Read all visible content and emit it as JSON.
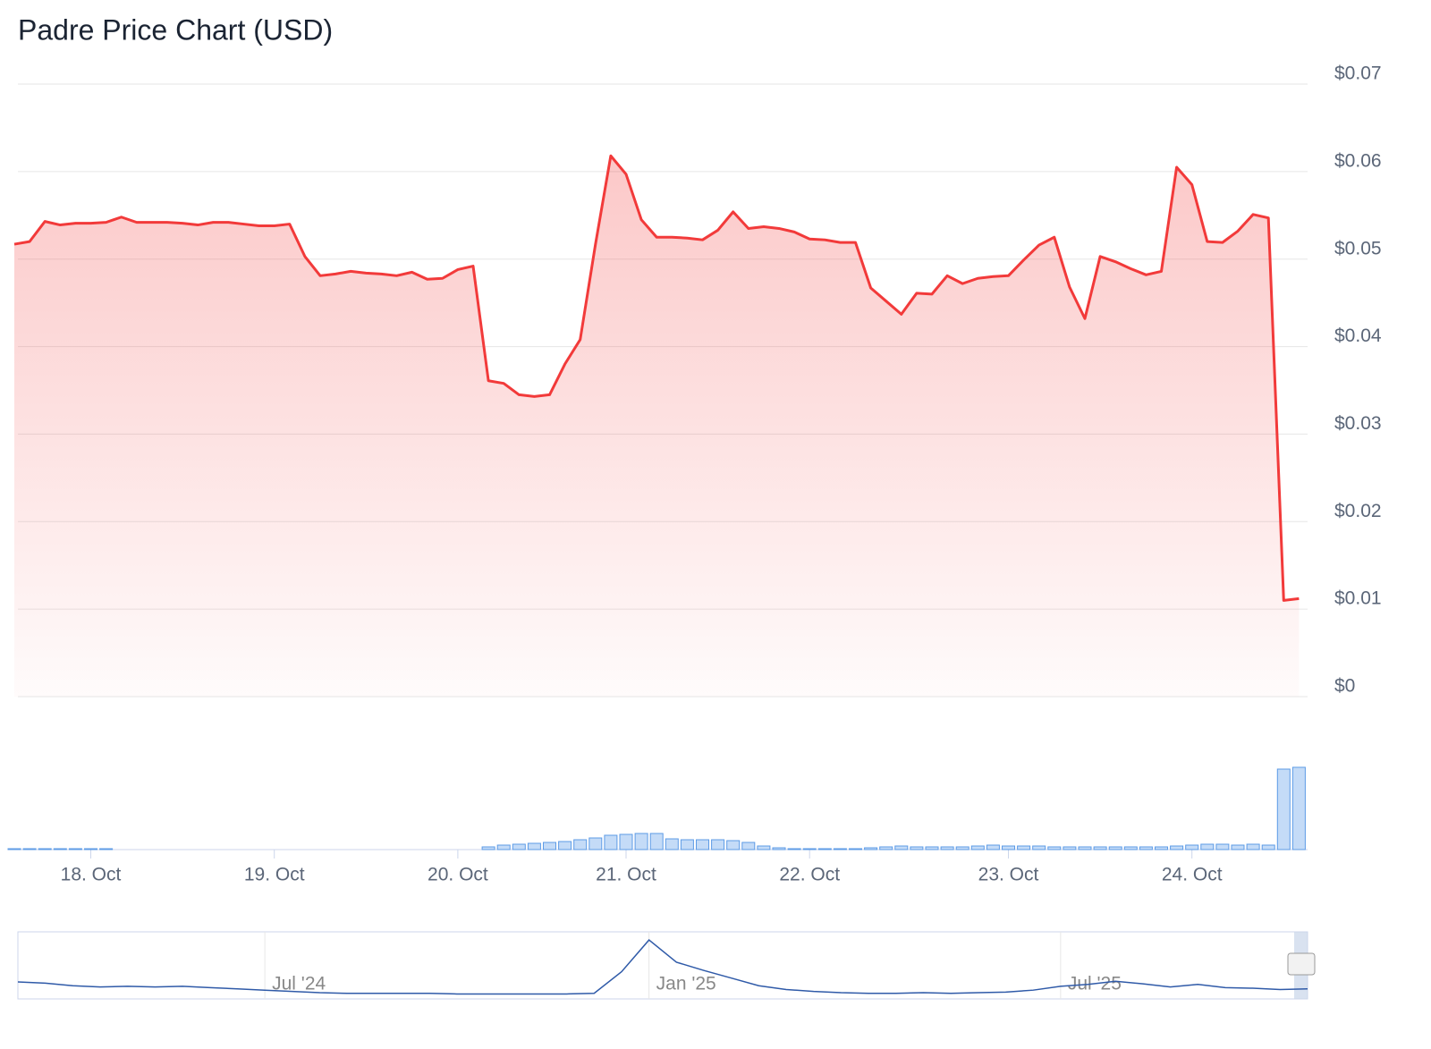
{
  "chart_data": [
    {
      "type": "area",
      "title": "Padre Price Chart (USD)",
      "color": "#f23a3a",
      "categories": [
        null,
        null,
        null,
        null,
        null,
        "18. Oct",
        null,
        null,
        null,
        null,
        null,
        null,
        null,
        null,
        null,
        null,
        null,
        "19. Oct",
        null,
        null,
        null,
        null,
        null,
        null,
        null,
        null,
        null,
        null,
        null,
        "20. Oct",
        null,
        null,
        null,
        null,
        null,
        null,
        null,
        null,
        null,
        null,
        "21. Oct",
        null,
        null,
        null,
        null,
        null,
        null,
        null,
        null,
        null,
        null,
        null,
        "22. Oct",
        null,
        null,
        null,
        null,
        null,
        null,
        null,
        null,
        null,
        null,
        null,
        null,
        "23. Oct",
        null,
        null,
        null,
        null,
        null,
        null,
        null,
        null,
        null,
        null,
        null,
        "24. Oct",
        null,
        null,
        null,
        null,
        null,
        null,
        null
      ],
      "values": [
        0.0517,
        0.052,
        0.0543,
        0.0539,
        0.0541,
        0.0541,
        0.0542,
        0.0548,
        0.0542,
        0.0542,
        0.0542,
        0.0541,
        0.0539,
        0.0542,
        0.0542,
        0.054,
        0.0538,
        0.0538,
        0.054,
        0.0503,
        0.0481,
        0.0483,
        0.0486,
        0.0484,
        0.0483,
        0.0481,
        0.0485,
        0.0477,
        0.0478,
        0.0488,
        0.0492,
        0.0361,
        0.0358,
        0.0345,
        0.0343,
        0.0345,
        0.038,
        0.0408,
        0.0517,
        0.0618,
        0.0597,
        0.0545,
        0.0525,
        0.0525,
        0.0524,
        0.0522,
        0.0533,
        0.0554,
        0.0535,
        0.0537,
        0.0535,
        0.0531,
        0.0523,
        0.0522,
        0.0519,
        0.0519,
        0.0467,
        0.0452,
        0.0437,
        0.0461,
        0.046,
        0.0481,
        0.0472,
        0.0478,
        0.048,
        0.0481,
        0.0499,
        0.0516,
        0.0525,
        0.0468,
        0.0432,
        0.0503,
        0.0497,
        0.0489,
        0.0482,
        0.0486,
        0.0605,
        0.0585,
        0.052,
        0.0519,
        0.0532,
        0.0551,
        0.0547,
        0.011,
        0.0112
      ],
      "ylim": [
        0,
        0.07
      ],
      "yticks": [
        {
          "value": 0,
          "label": "$0"
        },
        {
          "value": 0.01,
          "label": "$0.01"
        },
        {
          "value": 0.02,
          "label": "$0.02"
        },
        {
          "value": 0.03,
          "label": "$0.03"
        },
        {
          "value": 0.04,
          "label": "$0.04"
        },
        {
          "value": 0.05,
          "label": "$0.05"
        },
        {
          "value": 0.06,
          "label": "$0.06"
        },
        {
          "value": 0.07,
          "label": "$0.07"
        }
      ],
      "grid": true
    },
    {
      "type": "bar",
      "color": "#9cc3f2",
      "values": [
        1,
        1,
        1,
        1,
        1,
        1,
        1,
        0,
        0,
        0,
        0,
        0,
        0,
        0,
        0,
        0,
        0,
        0,
        0,
        0,
        0,
        0,
        0,
        0,
        0,
        0,
        0,
        0,
        0,
        0,
        0,
        3,
        5,
        6,
        7,
        8,
        9,
        11,
        13,
        16,
        17,
        18,
        18,
        12,
        11,
        11,
        11,
        10,
        8,
        4,
        2,
        1,
        1,
        1,
        1,
        1,
        2,
        3,
        4,
        3,
        3,
        3,
        3,
        4,
        5,
        4,
        4,
        4,
        3,
        3,
        3,
        3,
        3,
        3,
        3,
        3,
        4,
        5,
        6,
        6,
        5,
        6,
        5,
        90,
        92
      ],
      "ylim": [
        0,
        100
      ]
    },
    {
      "type": "line",
      "color": "#2f5aa8",
      "categories": [
        null,
        null,
        null,
        null,
        null,
        null,
        null,
        null,
        null,
        "Jul '24",
        null,
        null,
        null,
        null,
        null,
        null,
        null,
        null,
        null,
        null,
        null,
        null,
        null,
        "Jan '25",
        null,
        null,
        null,
        null,
        null,
        null,
        null,
        null,
        null,
        null,
        null,
        null,
        null,
        null,
        "Jul '25",
        null,
        null,
        null,
        null,
        null,
        null,
        null,
        null,
        null
      ],
      "values": [
        24,
        22,
        18,
        16,
        17,
        16,
        17,
        15,
        13,
        11,
        9,
        7,
        6,
        6,
        6,
        6,
        5,
        5,
        5,
        5,
        5,
        6,
        40,
        90,
        55,
        42,
        30,
        18,
        12,
        9,
        7,
        6,
        6,
        7,
        6,
        7,
        8,
        11,
        17,
        20,
        25,
        21,
        16,
        20,
        15,
        14,
        12,
        13
      ],
      "ylim": [
        0,
        100
      ]
    }
  ]
}
